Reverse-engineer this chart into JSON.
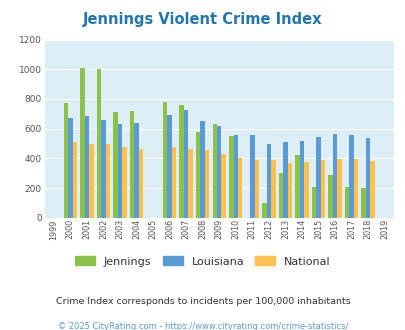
{
  "title": "Jennings Violent Crime Index",
  "years": [
    1999,
    2000,
    2001,
    2002,
    2003,
    2004,
    2005,
    2006,
    2007,
    2008,
    2009,
    2010,
    2011,
    2012,
    2013,
    2014,
    2015,
    2016,
    2017,
    2018,
    2019
  ],
  "jennings": [
    null,
    775,
    1010,
    1000,
    710,
    720,
    null,
    780,
    760,
    575,
    635,
    550,
    null,
    100,
    300,
    420,
    210,
    285,
    210,
    200,
    null
  ],
  "louisiana": [
    null,
    675,
    685,
    660,
    630,
    640,
    null,
    690,
    725,
    650,
    620,
    555,
    555,
    495,
    510,
    520,
    545,
    565,
    555,
    540,
    null
  ],
  "national": [
    null,
    510,
    500,
    495,
    480,
    465,
    null,
    475,
    465,
    455,
    430,
    405,
    390,
    390,
    370,
    375,
    390,
    395,
    395,
    380,
    null
  ],
  "jennings_color": "#8bc34a",
  "louisiana_color": "#5b9bd5",
  "national_color": "#ffc04c",
  "plot_bg": "#deeef6",
  "ylim": [
    0,
    1200
  ],
  "yticks": [
    0,
    200,
    400,
    600,
    800,
    1000,
    1200
  ],
  "legend_labels": [
    "Jennings",
    "Louisiana",
    "National"
  ],
  "footnote1": "Crime Index corresponds to incidents per 100,000 inhabitants",
  "footnote2": "© 2025 CityRating.com - https://www.cityrating.com/crime-statistics/",
  "title_color": "#2176ae",
  "footnote1_color": "#333333",
  "footnote2_color": "#5b9bd5"
}
